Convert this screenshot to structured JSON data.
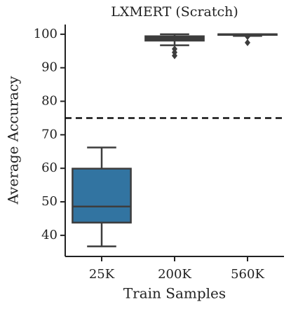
{
  "chart_data": {
    "type": "box",
    "title": "LXMERT (Scratch)",
    "x_label": "Train Samples",
    "y_label": "Average Accuracy",
    "categories": [
      "25K",
      "200K",
      "560K"
    ],
    "colors": [
      "#3274a1",
      "#3d3d3d",
      "#3d3d3d"
    ],
    "boxes": [
      {
        "whislo": 36.7,
        "q1": 43.8,
        "med": 48.6,
        "q3": 59.9,
        "whishi": 66.2,
        "fliers": []
      },
      {
        "whislo": 96.7,
        "q1": 98.1,
        "med": 98.8,
        "q3": 99.4,
        "whishi": 100,
        "fliers": [
          95.6,
          94.6,
          93.6
        ]
      },
      {
        "whislo": 99.5,
        "q1": 99.8,
        "med": 100,
        "q3": 100,
        "whishi": 100,
        "fliers": [
          99.3,
          97.5
        ]
      }
    ],
    "hline": 75,
    "ylim": [
      33.7,
      102.9
    ],
    "yticks": [
      40,
      50,
      60,
      70,
      80,
      90,
      100
    ]
  }
}
